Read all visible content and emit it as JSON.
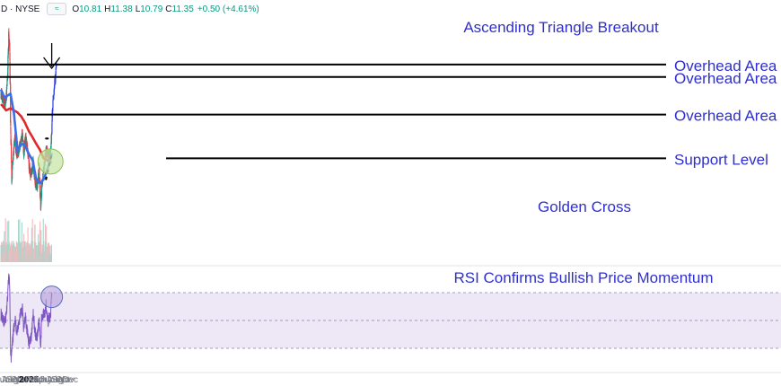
{
  "header": {
    "symbol": "D · NYSE",
    "toggle_label": "≈",
    "o_label": "O",
    "o": "10.81",
    "h_label": "H",
    "h": "11.38",
    "l_label": "L",
    "l": "10.79",
    "c_label": "C",
    "c": "11.35",
    "change": "+0.50 (+4.61%)"
  },
  "colors": {
    "candle_up": "#089981",
    "candle_down": "#f23645",
    "ma_50": "#3d6ee8",
    "ma_200": "#e0292a",
    "annotation_text": "#2f2fd0",
    "level_line": "#000000",
    "rsi_line": "#7e57c2",
    "rsi_band": "#ede7f6",
    "volume_up": "#a5d6ce",
    "volume_down": "#f7b9bc",
    "golden_cross_fill": "#c8e6a8"
  },
  "chart_data": {
    "type": "candlestick",
    "x_tick_labels": [
      "Jun",
      "Jul",
      "Aug",
      "Sep",
      "Oct",
      "Nov",
      "Dec",
      "2025",
      "Feb",
      "Mar",
      "Apr",
      "May",
      "Jun",
      "Jul",
      "Aug",
      "Sep",
      "Oct",
      "Nov",
      "Dec"
    ],
    "x_tick_dates": [
      "2024-06-01",
      "2024-07-01",
      "2024-08-01",
      "2024-09-01",
      "2024-10-01",
      "2024-11-01",
      "2024-12-01",
      "2025-01-01",
      "2025-02-01",
      "2025-03-01",
      "2025-04-01",
      "2025-05-01",
      "2025-06-01",
      "2025-07-01",
      "2025-08-01",
      "2025-09-01",
      "2025-10-01",
      "2025-11-01",
      "2025-12-01"
    ],
    "price_ylim": [
      3.3,
      13.2
    ],
    "close_keypoints": [
      [
        "2024-05-20",
        10.0
      ],
      [
        "2024-06-10",
        9.7
      ],
      [
        "2024-06-25",
        9.5
      ],
      [
        "2024-07-05",
        10.1
      ],
      [
        "2024-07-15",
        11.4
      ],
      [
        "2024-07-22",
        12.9
      ],
      [
        "2024-07-30",
        12.0
      ],
      [
        "2024-08-05",
        8.5
      ],
      [
        "2024-08-15",
        6.0
      ],
      [
        "2024-08-25",
        6.9
      ],
      [
        "2024-09-10",
        7.9
      ],
      [
        "2024-09-25",
        6.9
      ],
      [
        "2024-10-10",
        7.3
      ],
      [
        "2024-10-25",
        7.5
      ],
      [
        "2024-11-10",
        8.1
      ],
      [
        "2024-11-20",
        7.2
      ],
      [
        "2024-12-05",
        7.9
      ],
      [
        "2024-12-20",
        7.3
      ],
      [
        "2025-01-05",
        6.4
      ],
      [
        "2025-01-20",
        6.1
      ],
      [
        "2025-02-05",
        6.7
      ],
      [
        "2025-02-20",
        5.8
      ],
      [
        "2025-03-10",
        5.5
      ],
      [
        "2025-03-25",
        6.4
      ],
      [
        "2025-04-07",
        4.6
      ],
      [
        "2025-04-15",
        5.6
      ],
      [
        "2025-05-05",
        6.5
      ],
      [
        "2025-05-20",
        7.3
      ],
      [
        "2025-06-05",
        7.0
      ],
      [
        "2025-06-25",
        7.0
      ],
      [
        "2025-07-01",
        7.6
      ],
      [
        "2025-07-05",
        8.3
      ],
      [
        "2025-07-12",
        9.4
      ],
      [
        "2025-07-25",
        10.3
      ],
      [
        "2025-08-05",
        10.8
      ],
      [
        "2025-08-12",
        11.35
      ]
    ],
    "sma_50_keypoints": [
      [
        "2024-05-20",
        10.2
      ],
      [
        "2024-06-10",
        9.9
      ],
      [
        "2024-06-25",
        9.8
      ],
      [
        "2024-07-10",
        9.9
      ],
      [
        "2024-08-05",
        10.0
      ],
      [
        "2024-09-01",
        9.1
      ],
      [
        "2024-10-01",
        7.3
      ],
      [
        "2024-11-01",
        7.6
      ],
      [
        "2024-12-01",
        7.5
      ],
      [
        "2025-01-01",
        7.1
      ],
      [
        "2025-02-01",
        6.8
      ],
      [
        "2025-03-01",
        5.9
      ],
      [
        "2025-04-01",
        5.7
      ],
      [
        "2025-05-01",
        5.9
      ],
      [
        "2025-06-01",
        6.4
      ],
      [
        "2025-07-01",
        7.0
      ],
      [
        "2025-07-05",
        7.2
      ]
    ],
    "sma_200_keypoints": [
      [
        "2024-05-20",
        9.5
      ],
      [
        "2024-07-01",
        9.2
      ],
      [
        "2024-08-05",
        9.3
      ],
      [
        "2024-09-01",
        9.2
      ],
      [
        "2024-10-01",
        9.1
      ],
      [
        "2024-11-01",
        8.9
      ],
      [
        "2024-12-01",
        8.6
      ],
      [
        "2025-01-01",
        8.2
      ],
      [
        "2025-02-01",
        7.9
      ],
      [
        "2025-03-01",
        7.6
      ],
      [
        "2025-04-01",
        7.3
      ],
      [
        "2025-05-01",
        6.9
      ],
      [
        "2025-06-01",
        6.8
      ],
      [
        "2025-07-01",
        6.7
      ],
      [
        "2025-07-05",
        6.7
      ]
    ],
    "levels": [
      {
        "label": "Overhead Area",
        "price": 11.4
      },
      {
        "label": "Overhead Area",
        "price": 10.8
      },
      {
        "label": "Overhead Area",
        "price": 9.0
      },
      {
        "label": "Support Level",
        "price": 6.9
      }
    ],
    "dotted_triangle": [
      {
        "from": [
          "2025-05-20",
          7.85
        ],
        "to": [
          "2025-07-15",
          7.85
        ]
      },
      {
        "from": [
          "2025-05-20",
          5.9
        ],
        "to": [
          "2025-07-05",
          7.1
        ]
      }
    ],
    "annotations": [
      {
        "text": "Ascending Triangle Breakout",
        "arrow": true,
        "date": "2025-07-05"
      },
      {
        "text": "Golden Cross",
        "date": "2025-06-25"
      },
      {
        "text": "RSI Confirms Bullish Price Momentum",
        "date": "2025-07-05"
      }
    ],
    "rsi": {
      "band": [
        30,
        70
      ],
      "mid": 50,
      "keypoints": [
        [
          "2024-05-20",
          55
        ],
        [
          "2024-06-10",
          48
        ],
        [
          "2024-06-25",
          50
        ],
        [
          "2024-07-10",
          62
        ],
        [
          "2024-07-22",
          82
        ],
        [
          "2024-07-30",
          74
        ],
        [
          "2024-08-05",
          30
        ],
        [
          "2024-08-10",
          22
        ],
        [
          "2024-08-25",
          38
        ],
        [
          "2024-09-10",
          52
        ],
        [
          "2024-09-25",
          42
        ],
        [
          "2024-10-10",
          48
        ],
        [
          "2024-10-25",
          55
        ],
        [
          "2024-11-10",
          58
        ],
        [
          "2024-11-20",
          44
        ],
        [
          "2024-12-05",
          52
        ],
        [
          "2024-12-20",
          41
        ],
        [
          "2025-01-05",
          33
        ],
        [
          "2025-01-20",
          38
        ],
        [
          "2025-02-05",
          56
        ],
        [
          "2025-02-20",
          41
        ],
        [
          "2025-03-10",
          38
        ],
        [
          "2025-03-25",
          52
        ],
        [
          "2025-04-07",
          30
        ],
        [
          "2025-04-15",
          53
        ],
        [
          "2025-05-05",
          55
        ],
        [
          "2025-05-20",
          61
        ],
        [
          "2025-06-05",
          49
        ],
        [
          "2025-06-25",
          54
        ],
        [
          "2025-07-05",
          67
        ]
      ]
    }
  }
}
